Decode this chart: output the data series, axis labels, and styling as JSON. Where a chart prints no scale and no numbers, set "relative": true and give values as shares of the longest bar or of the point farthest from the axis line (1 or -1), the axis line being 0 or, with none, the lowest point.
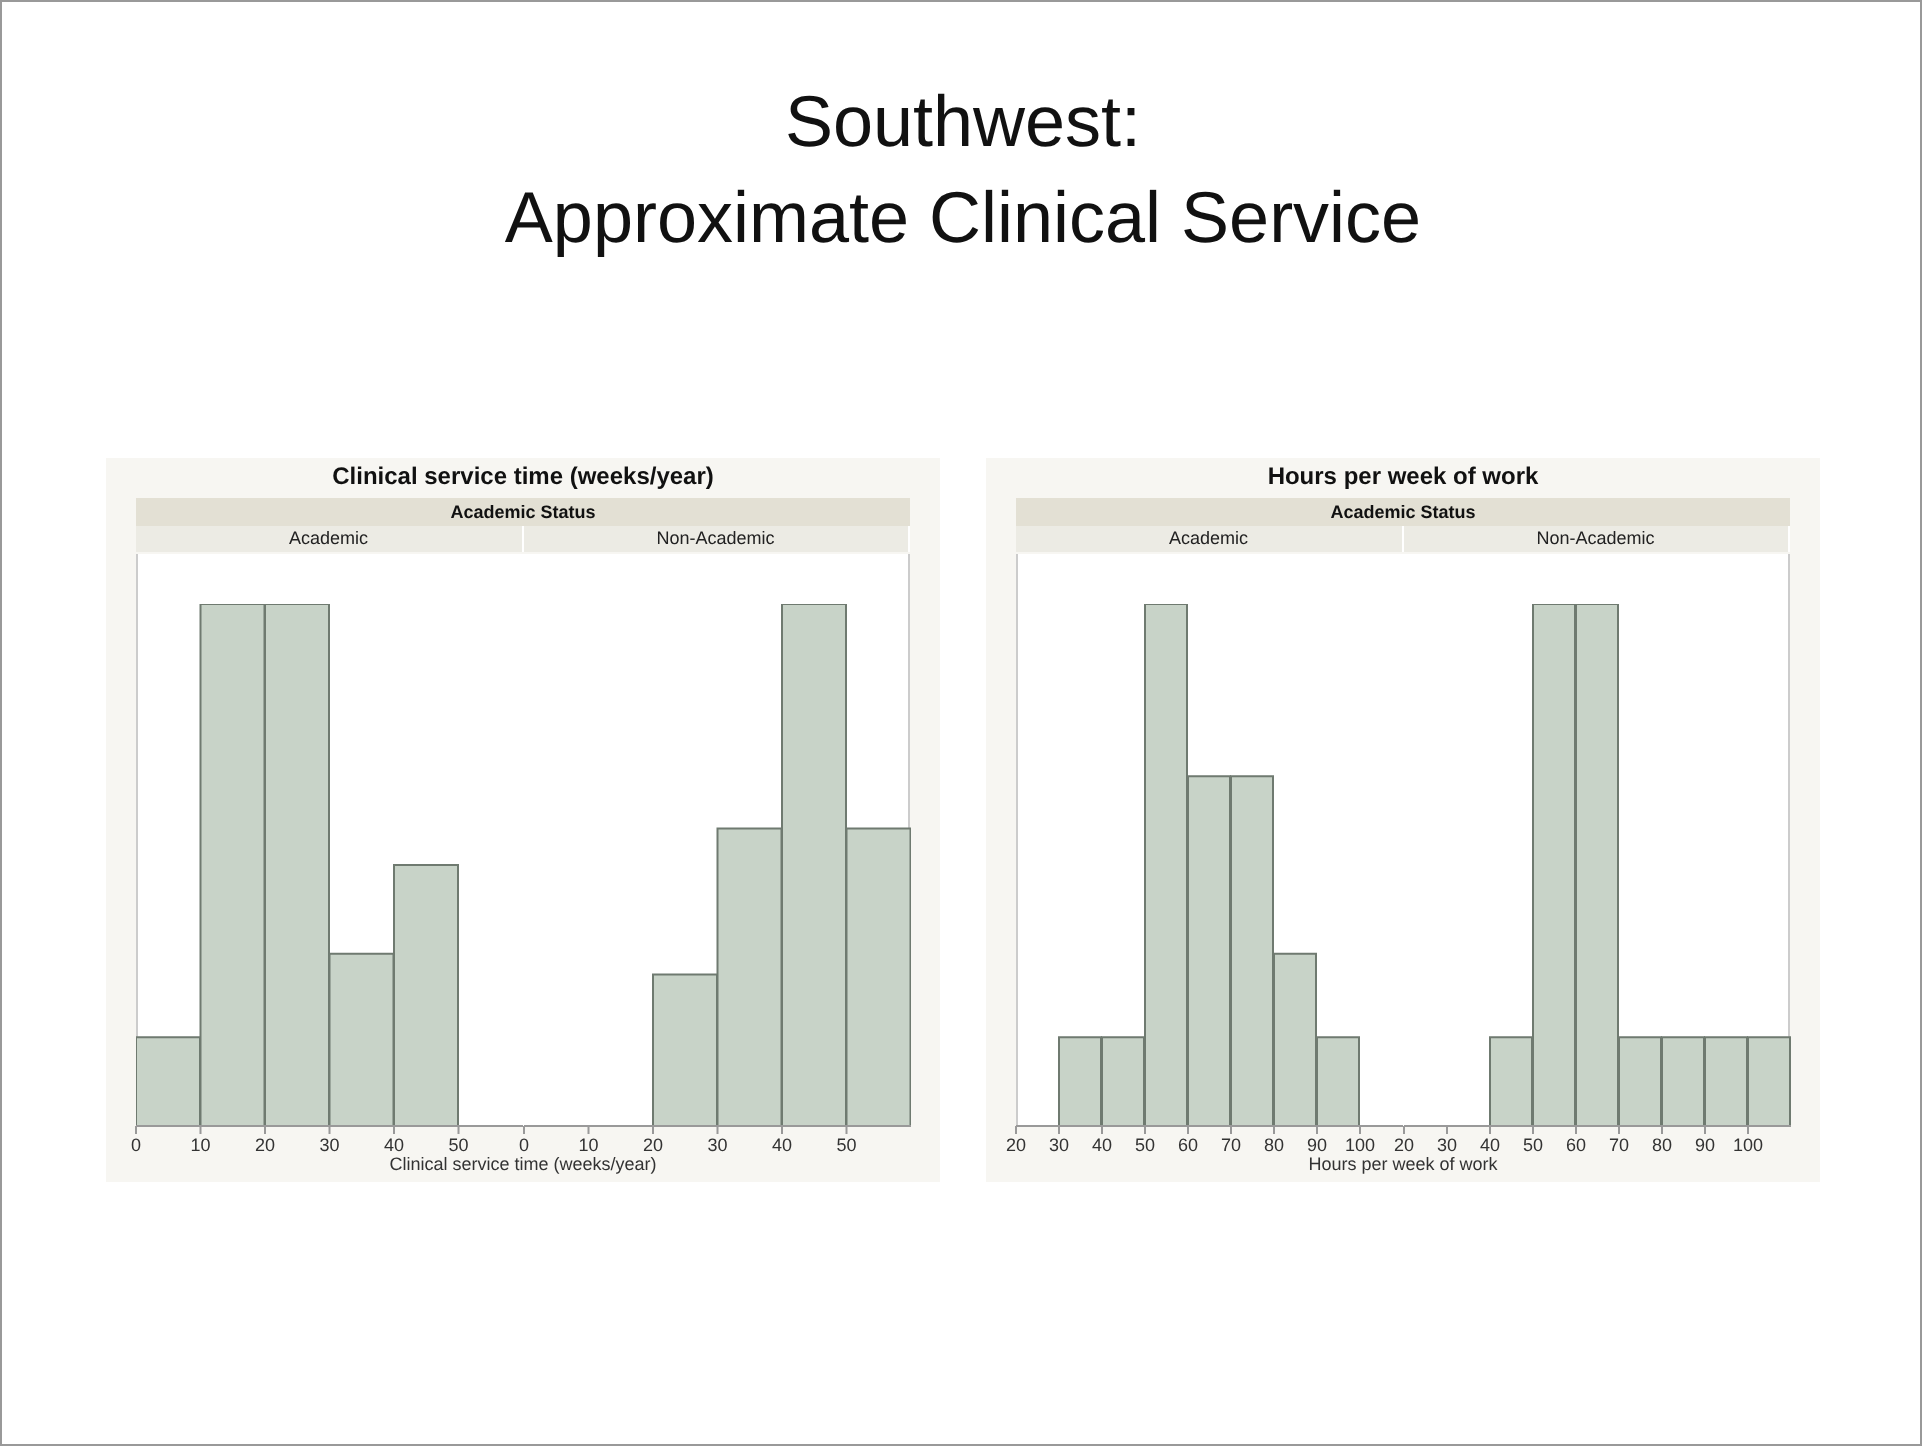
{
  "chart_data": [
    {
      "type": "bar",
      "annotations": [
        "Southwest:",
        "Approximate Clinical Service"
      ],
      "subtitle": "Clinical service time (weeks/year)",
      "legend_title": "Academic Status",
      "title": "Academic",
      "xlabel": "Clinical service time (weeks/year)",
      "relative": true,
      "color": "#c8d3c8",
      "x": [
        5,
        15,
        25,
        35,
        45
      ],
      "values": [
        0.17,
        1,
        1,
        0.33,
        0.5
      ],
      "xlim": [
        0,
        60
      ],
      "xticks": [
        0,
        10,
        20,
        30,
        40,
        50
      ]
    },
    {
      "type": "bar",
      "title": "Non-Academic",
      "relative": true,
      "color": "#c8d3c8",
      "x": [
        25,
        35,
        45,
        55
      ],
      "values": [
        0.29,
        0.57,
        1,
        0.57
      ],
      "xlim": [
        0,
        60
      ],
      "xticks": [
        0,
        10,
        20,
        30,
        40,
        50
      ]
    },
    {
      "type": "bar",
      "subtitle": "Hours per week of work",
      "legend_title": "Academic Status",
      "title": "Academic",
      "xlabel": "Hours per week of work",
      "relative": true,
      "color": "#c8d3c8",
      "x": [
        35,
        45,
        55,
        65,
        75,
        85,
        95
      ],
      "values": [
        0.17,
        0.17,
        1,
        0.67,
        0.67,
        0.33,
        0.17
      ],
      "xlim": [
        20,
        110
      ],
      "xticks": [
        20,
        30,
        40,
        50,
        60,
        70,
        80,
        90,
        100
      ]
    },
    {
      "type": "bar",
      "title": "Non-Academic",
      "relative": true,
      "color": "#c8d3c8",
      "x": [
        45,
        55,
        65,
        75,
        85,
        95,
        105
      ],
      "values": [
        0.17,
        1,
        1,
        0.17,
        0.17,
        0.17,
        0.17
      ],
      "xlim": [
        20,
        110
      ],
      "xticks": [
        20,
        30,
        40,
        50,
        60,
        70,
        80,
        90,
        100
      ]
    }
  ]
}
